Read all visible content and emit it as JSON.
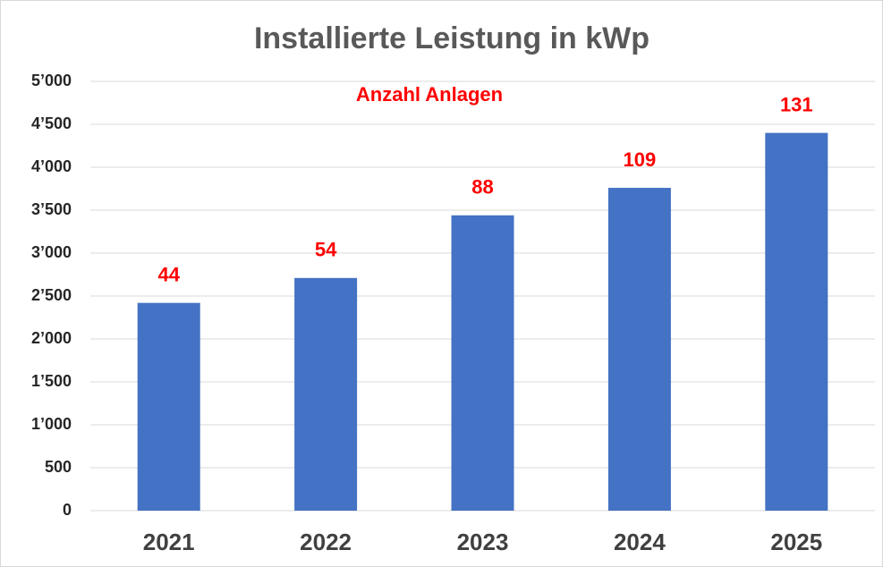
{
  "chart_data": {
    "type": "bar",
    "title": "Installierte Leistung in kWp",
    "categories": [
      "2021",
      "2022",
      "2023",
      "2024",
      "2025"
    ],
    "values": [
      2420,
      2710,
      3440,
      3760,
      4400
    ],
    "color": "#4472c4",
    "annotation": "Anzahl Anlagen",
    "installations": [
      44,
      54,
      88,
      109,
      131
    ],
    "ylim": [
      0,
      5000
    ],
    "yticks": [
      0,
      500,
      {
        "value": 1000,
        "label": "1’000"
      },
      {
        "value": 1500,
        "label": "1’500"
      },
      {
        "value": 2000,
        "label": "2’000"
      },
      {
        "value": 2500,
        "label": "2’500"
      },
      {
        "value": 3000,
        "label": "3’000"
      },
      {
        "value": 3500,
        "label": "3’500"
      },
      {
        "value": 4000,
        "label": "4’000"
      },
      {
        "value": 4500,
        "label": "4’500"
      },
      {
        "value": 5000,
        "label": "5’000"
      }
    ],
    "grid": true
  }
}
